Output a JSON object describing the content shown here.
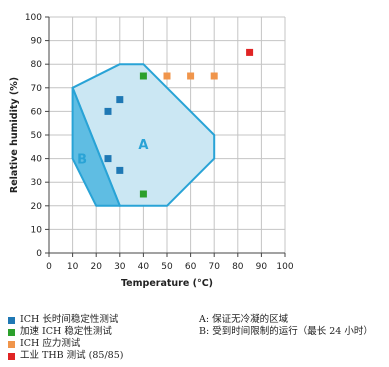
{
  "chart_data": {
    "type": "scatter",
    "xlabel": "Temperature (°C)",
    "ylabel": "Relative humidity (%)",
    "xlim": [
      0,
      100
    ],
    "ylim": [
      0,
      100
    ],
    "xticks": [
      0,
      10,
      20,
      30,
      40,
      50,
      60,
      70,
      80,
      90,
      100
    ],
    "yticks": [
      0,
      10,
      20,
      30,
      40,
      50,
      60,
      70,
      80,
      90,
      100
    ],
    "grid": true,
    "regions": [
      {
        "label": "A",
        "color": "#29a3d6",
        "fill": "#cbe7f3",
        "polygon": [
          [
            10,
            70
          ],
          [
            30,
            80
          ],
          [
            40,
            80
          ],
          [
            70,
            50
          ],
          [
            70,
            40
          ],
          [
            50,
            20
          ],
          [
            30,
            20
          ],
          [
            10,
            70
          ]
        ]
      },
      {
        "label": "B",
        "color": "#29a3d6",
        "fill": "#5fbde3",
        "polygon": [
          [
            10,
            70
          ],
          [
            30,
            20
          ],
          [
            20,
            20
          ],
          [
            10,
            40
          ]
        ]
      }
    ],
    "region_label_positions": [
      {
        "label": "A",
        "x": 40,
        "y": 44
      },
      {
        "label": "B",
        "x": 14,
        "y": 38
      }
    ],
    "series": [
      {
        "name": "ICH 长时间稳定性测试",
        "color": "#1f78b4",
        "points": [
          [
            25,
            60
          ],
          [
            30,
            65
          ],
          [
            25,
            40
          ],
          [
            30,
            35
          ]
        ]
      },
      {
        "name": "加速 ICH 稳定性测试",
        "color": "#2ca02c",
        "points": [
          [
            40,
            75
          ],
          [
            40,
            25
          ]
        ]
      },
      {
        "name": "ICH 应力测试",
        "color": "#f0954b",
        "points": [
          [
            50,
            75
          ],
          [
            60,
            75
          ],
          [
            70,
            75
          ]
        ]
      },
      {
        "name": "工业 THB 测试 (85/85)",
        "color": "#e02424",
        "points": [
          [
            85,
            85
          ]
        ]
      }
    ]
  },
  "legend": {
    "series_items": [
      {
        "label": "ICH 长时间稳定性测试",
        "color": "#1f78b4"
      },
      {
        "label": "加速 ICH 稳定性测试",
        "color": "#2ca02c"
      },
      {
        "label": "ICH 应力测试",
        "color": "#f0954b"
      },
      {
        "label": "工业 THB 测试 (85/85)",
        "color": "#e02424"
      }
    ],
    "notes": [
      "A: 保证无冷凝的区域",
      "B: 受到时间限制的运行（最长 24 小时）"
    ]
  }
}
